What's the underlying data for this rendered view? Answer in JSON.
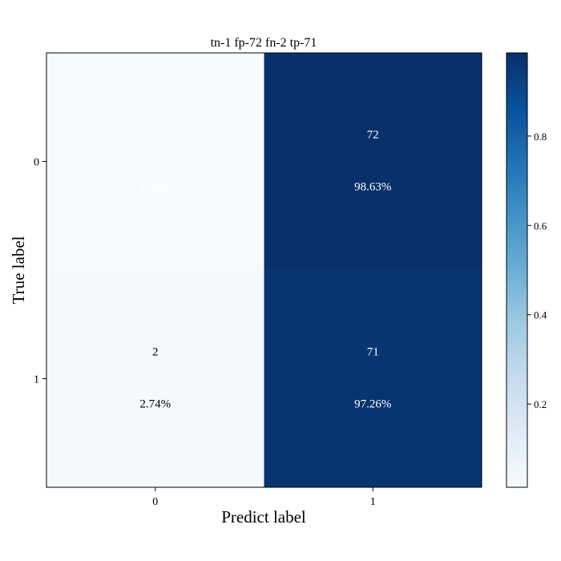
{
  "chart_data": {
    "type": "heatmap",
    "title": "tn-1 fp-72 fn-2 tp-71",
    "xlabel": "Predict label",
    "ylabel": "True label",
    "x_ticks": [
      "0",
      "1"
    ],
    "y_ticks": [
      "0",
      "1"
    ],
    "cells": [
      [
        {
          "count": "1",
          "percent": "1.37%",
          "value": 0.0137
        },
        {
          "count": "72",
          "percent": "98.63%",
          "value": 0.9863
        }
      ],
      [
        {
          "count": "2",
          "percent": "2.74%",
          "value": 0.0274
        },
        {
          "count": "71",
          "percent": "97.26%",
          "value": 0.9726
        }
      ]
    ],
    "colormap": "Blues",
    "colorbar": {
      "ticks": [
        "0.2",
        "0.4",
        "0.6",
        "0.8"
      ],
      "tick_values": [
        0.2,
        0.4,
        0.6,
        0.8
      ],
      "range": [
        0.0137,
        0.9863
      ]
    }
  }
}
